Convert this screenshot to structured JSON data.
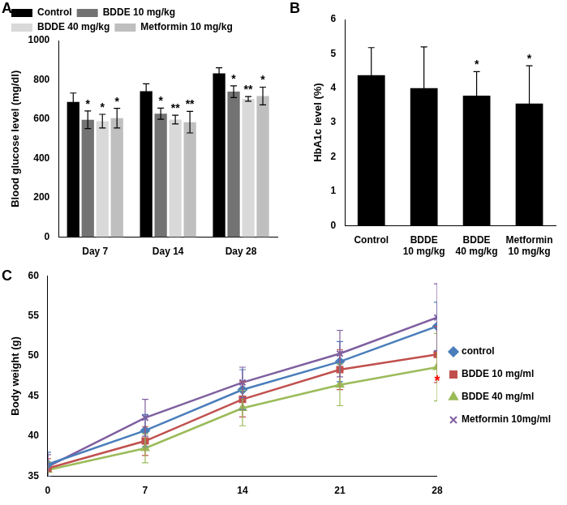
{
  "chart_data": [
    {
      "type": "bar",
      "title": "A",
      "y_label": "Blood glucose level (mg/dl)",
      "categories": [
        "Day 7",
        "Day 14",
        "Day 28"
      ],
      "series": [
        {
          "name": "Control",
          "color": "#000000",
          "values": [
            688,
            742,
            833
          ],
          "errors": [
            45,
            38,
            28
          ]
        },
        {
          "name": "BDDE 10 mg/kg",
          "color": "#737373",
          "values": [
            597,
            628,
            740
          ],
          "errors": [
            45,
            28,
            30
          ],
          "significance": [
            "*",
            "*",
            "*"
          ]
        },
        {
          "name": "BDDE 40 mg/kg",
          "color": "#d9d9d9",
          "values": [
            590,
            598,
            703
          ],
          "errors": [
            35,
            22,
            12
          ],
          "significance": [
            "*",
            "**",
            "**"
          ]
        },
        {
          "name": "Metformin 10 mg/kg",
          "color": "#bfbfbf",
          "values": [
            605,
            585,
            718
          ],
          "errors": [
            50,
            55,
            45
          ],
          "significance": [
            "*",
            "**",
            "*"
          ]
        }
      ],
      "ylim": [
        0,
        1000
      ],
      "yticks": [
        0,
        200,
        400,
        600,
        800,
        1000
      ],
      "grid": false,
      "legend": "top"
    },
    {
      "type": "bar",
      "title": "B",
      "y_label": "HbA1c level (%)",
      "categories": [
        "Control",
        "BDDE 10 mg/kg",
        "BDDE 40 mg/kg",
        "Metformin 10 mg/kg"
      ],
      "values": [
        4.38,
        4.0,
        3.78,
        3.55
      ],
      "errors": [
        0.8,
        1.2,
        0.7,
        1.1
      ],
      "significance": [
        null,
        null,
        "*",
        "*"
      ],
      "color": "#000000",
      "ylim": [
        0,
        6
      ],
      "yticks": [
        0,
        1,
        2,
        3,
        4,
        5,
        6
      ],
      "grid": false
    },
    {
      "type": "line",
      "title": "C",
      "y_label": "Body weight (g)",
      "x": [
        0,
        7,
        14,
        21,
        28
      ],
      "series": [
        {
          "name": "control",
          "color": "#4a7ebb",
          "marker": "diamond",
          "values": [
            36.5,
            40.7,
            45.8,
            49.3,
            53.7
          ],
          "errors": [
            1.5,
            2.0,
            2.5,
            2.5,
            3.0
          ]
        },
        {
          "name": "BDDE 10 mg/ml",
          "color": "#c0504d",
          "marker": "square",
          "values": [
            36.0,
            39.4,
            44.6,
            48.3,
            50.2
          ],
          "errors": [
            1.2,
            1.8,
            2.2,
            2.5,
            3.5
          ]
        },
        {
          "name": "BDDE 40 mg/ml",
          "color": "#9bbb59",
          "marker": "triangle",
          "values": [
            35.8,
            38.5,
            43.5,
            46.4,
            48.6
          ],
          "errors": [
            1.0,
            1.8,
            2.2,
            2.6,
            4.2
          ]
        },
        {
          "name": "Metformin 10mg/ml",
          "color": "#7f5fa0",
          "marker": "cross",
          "values": [
            36.2,
            42.3,
            46.7,
            50.3,
            54.8
          ],
          "errors": [
            1.5,
            2.3,
            1.9,
            2.9,
            4.2
          ]
        }
      ],
      "annotations": [
        {
          "x": 28,
          "y": 46.8,
          "text": "*",
          "color": "#ff0000"
        }
      ],
      "xlim": [
        0,
        28
      ],
      "xticks": [
        0,
        7,
        14,
        21,
        28
      ],
      "ylim": [
        35,
        60
      ],
      "yticks": [
        35,
        40,
        45,
        50,
        55,
        60
      ],
      "grid": false,
      "legend": "right"
    }
  ]
}
